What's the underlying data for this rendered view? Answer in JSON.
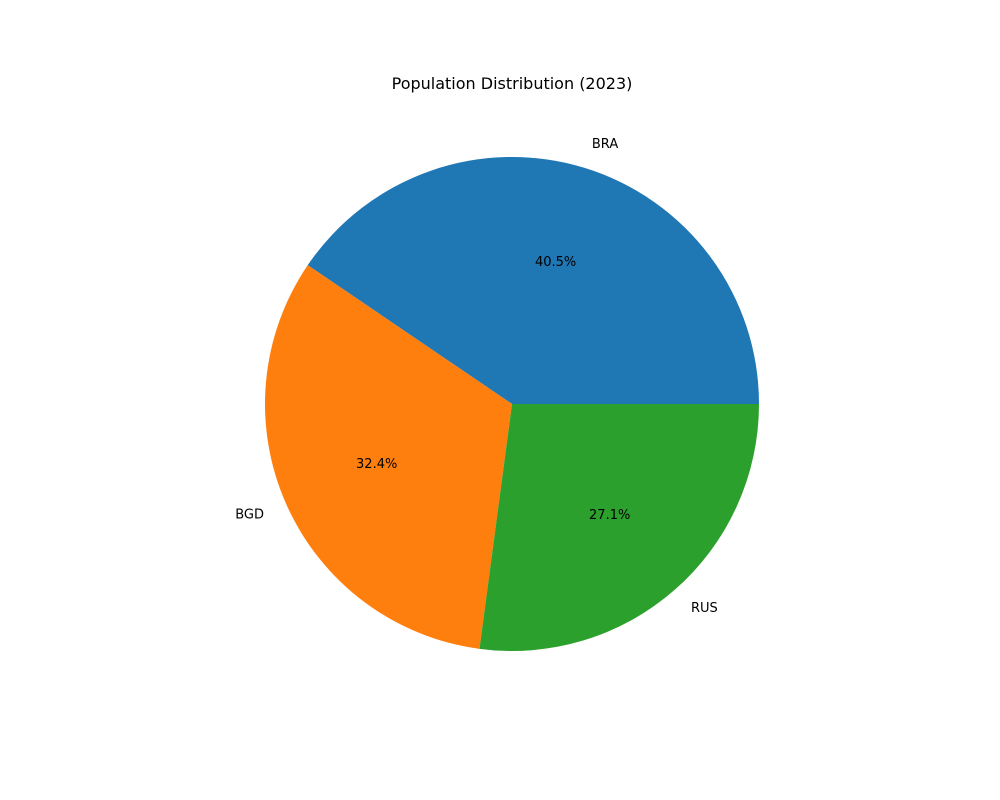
{
  "chart_data": {
    "type": "pie",
    "title": "Population Distribution (2023)",
    "start_angle_deg": 0,
    "direction": "counterclockwise",
    "slices": [
      {
        "label": "BRA",
        "value": 40.5,
        "pct_label": "40.5%",
        "color": "#1f77b4"
      },
      {
        "label": "BGD",
        "value": 32.4,
        "pct_label": "32.4%",
        "color": "#ff7f0e"
      },
      {
        "label": "RUS",
        "value": 27.1,
        "pct_label": "27.1%",
        "color": "#2ca02c"
      }
    ]
  }
}
